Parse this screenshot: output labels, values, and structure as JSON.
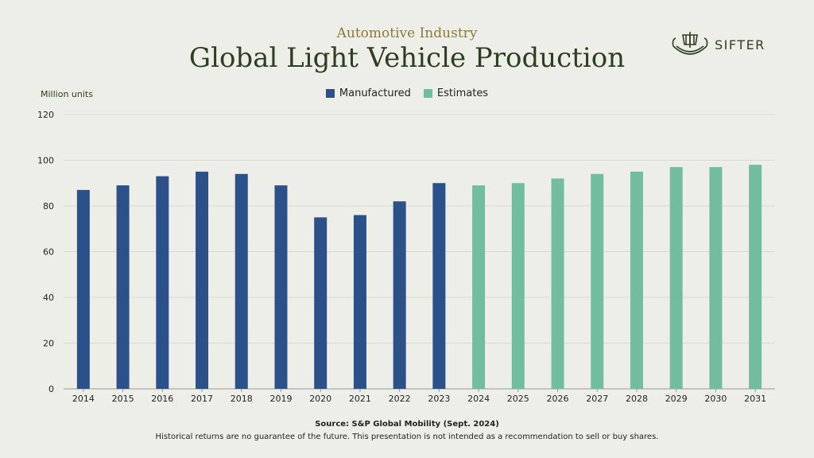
{
  "header": {
    "subtitle": "Automotive Industry",
    "title": "Global Light Vehicle Production",
    "brand": "SIFTER",
    "logo_icon": "viking-ship-icon"
  },
  "chart_data": {
    "type": "bar",
    "ylabel": "Million units",
    "ylim": [
      0,
      120
    ],
    "yticks": [
      0,
      20,
      40,
      60,
      80,
      100,
      120
    ],
    "grid": true,
    "legend_placement": "top-center",
    "categories": [
      "2014",
      "2015",
      "2016",
      "2017",
      "2018",
      "2019",
      "2020",
      "2021",
      "2022",
      "2023",
      "2024",
      "2025",
      "2026",
      "2027",
      "2028",
      "2029",
      "2030",
      "2031"
    ],
    "series": [
      {
        "name": "Manufactured",
        "color": "#2c5089",
        "values": [
          87,
          89,
          93,
          95,
          94,
          89,
          75,
          76,
          82,
          90,
          null,
          null,
          null,
          null,
          null,
          null,
          null,
          null
        ]
      },
      {
        "name": "Estimates",
        "color": "#72bd9e",
        "values": [
          null,
          null,
          null,
          null,
          null,
          null,
          null,
          null,
          null,
          null,
          89,
          90,
          92,
          94,
          95,
          97,
          97,
          98
        ]
      }
    ]
  },
  "footer": {
    "source": "Source: S&P Global Mobility (Sept. 2024)",
    "disclaimer": "Historical returns are no guarantee of the future. This presentation is not intended as a recommendation to sell or buy shares."
  }
}
